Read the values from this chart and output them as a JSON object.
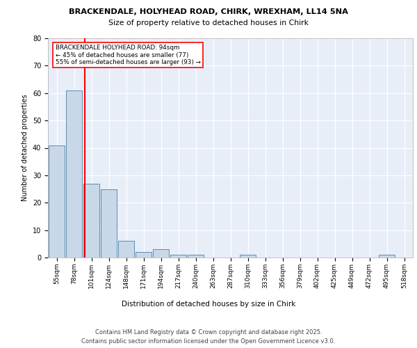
{
  "title_line1": "BRACKENDALE, HOLYHEAD ROAD, CHIRK, WREXHAM, LL14 5NA",
  "title_line2": "Size of property relative to detached houses in Chirk",
  "xlabel": "Distribution of detached houses by size in Chirk",
  "ylabel": "Number of detached properties",
  "categories": [
    "55sqm",
    "78sqm",
    "101sqm",
    "124sqm",
    "148sqm",
    "171sqm",
    "194sqm",
    "217sqm",
    "240sqm",
    "263sqm",
    "287sqm",
    "310sqm",
    "333sqm",
    "356sqm",
    "379sqm",
    "402sqm",
    "425sqm",
    "449sqm",
    "472sqm",
    "495sqm",
    "518sqm"
  ],
  "values": [
    41,
    61,
    27,
    25,
    6,
    2,
    3,
    1,
    1,
    0,
    0,
    1,
    0,
    0,
    0,
    0,
    0,
    0,
    0,
    1,
    0
  ],
  "bar_color": "#c8d8e8",
  "bar_edge_color": "#5b8db0",
  "bg_color": "#e8eef8",
  "grid_color": "#ffffff",
  "red_line_x": 1.62,
  "annotation_line1": "BRACKENDALE HOLYHEAD ROAD: 94sqm",
  "annotation_line2": "← 45% of detached houses are smaller (77)",
  "annotation_line3": "55% of semi-detached houses are larger (93) →",
  "annotation_box_color": "#ff0000",
  "footer_line1": "Contains HM Land Registry data © Crown copyright and database right 2025.",
  "footer_line2": "Contains public sector information licensed under the Open Government Licence v3.0.",
  "ylim": [
    0,
    80
  ],
  "yticks": [
    0,
    10,
    20,
    30,
    40,
    50,
    60,
    70,
    80
  ]
}
